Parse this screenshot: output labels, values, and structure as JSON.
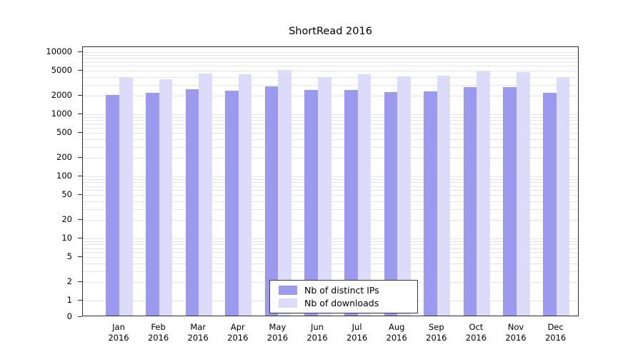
{
  "chart_data": {
    "type": "bar",
    "title": "ShortRead 2016",
    "categories": [
      "Jan 2016",
      "Feb 2016",
      "Mar 2016",
      "Apr 2016",
      "May 2016",
      "Jun 2016",
      "Jul 2016",
      "Aug 2016",
      "Sep 2016",
      "Oct 2016",
      "Nov 2016",
      "Dec 2016"
    ],
    "x_tick_top": [
      "Jan",
      "Feb",
      "Mar",
      "Apr",
      "May",
      "Jun",
      "Jul",
      "Aug",
      "Sep",
      "Oct",
      "Nov",
      "Dec"
    ],
    "x_tick_year": "2016",
    "series": [
      {
        "name": "Nb of distinct IPs",
        "color": "#9b9aee",
        "values": [
          1950,
          2100,
          2400,
          2280,
          2650,
          2330,
          2330,
          2180,
          2230,
          2600,
          2600,
          2100
        ]
      },
      {
        "name": "Nb of downloads",
        "color": "#dcdbf9",
        "values": [
          3650,
          3450,
          4350,
          4200,
          4900,
          3800,
          4150,
          3900,
          4000,
          4650,
          4550,
          3650
        ]
      }
    ],
    "y_axis": {
      "scale": "log",
      "ticks": [
        0,
        1,
        2,
        5,
        10,
        20,
        50,
        100,
        200,
        500,
        1000,
        2000,
        5000,
        10000
      ],
      "range_top": 10000
    },
    "grid": true,
    "legend": {
      "position": "inside-bottom-center",
      "items": [
        "Nb of distinct IPs",
        "Nb of downloads"
      ]
    }
  },
  "colors": {
    "bar_distinct_ips": "#9b9aee",
    "bar_downloads": "#dcdbf9",
    "grid": "#e4e4e4",
    "axis": "#2e2e2e",
    "background": "#ffffff"
  }
}
